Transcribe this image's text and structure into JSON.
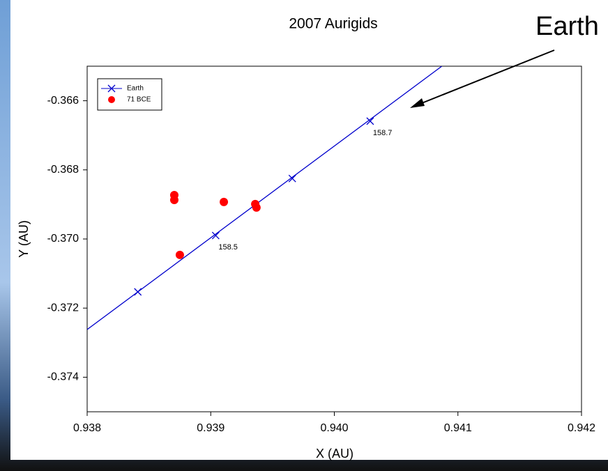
{
  "chart_data": {
    "type": "scatter",
    "title": "2007 Aurigids",
    "x_label": "X (AU)",
    "y_label": "Y (AU)",
    "xlim": [
      0.938,
      0.942
    ],
    "ylim": [
      -0.375,
      -0.365
    ],
    "xticks": [
      0.938,
      0.939,
      {
        "value": 0.94,
        "label": "0.940"
      },
      0.941,
      0.942
    ],
    "yticks": [
      -0.366,
      -0.368,
      {
        "value": -0.37,
        "label": "-0.370"
      },
      -0.372,
      -0.374
    ],
    "legend": "top-left",
    "series": [
      {
        "name": "Earth",
        "color": "#0000cc",
        "marker": "x",
        "x": [
          0.93841,
          0.93904,
          0.93966,
          0.94029
        ],
        "values": [
          -0.37153,
          -0.3699,
          -0.36825,
          -0.36659
        ],
        "line_x": [
          0.938,
          0.94087
        ],
        "line_values": [
          -0.37262,
          -0.365
        ]
      },
      {
        "name": "71 BCE",
        "color": "#ff0000",
        "marker": "circle",
        "x": [
          0.938705,
          0.938705,
          0.939106,
          0.93936,
          0.93937,
          0.93875
        ],
        "values": [
          -0.36873,
          -0.36887,
          -0.36893,
          -0.36899,
          -0.36909,
          -0.37046
        ]
      }
    ],
    "annotations": [
      {
        "text": "158.5",
        "x": 0.93904,
        "y": -0.3699
      },
      {
        "text": "158.7",
        "x": 0.94029,
        "y": -0.36659
      },
      {
        "text": "Earth"
      }
    ]
  }
}
